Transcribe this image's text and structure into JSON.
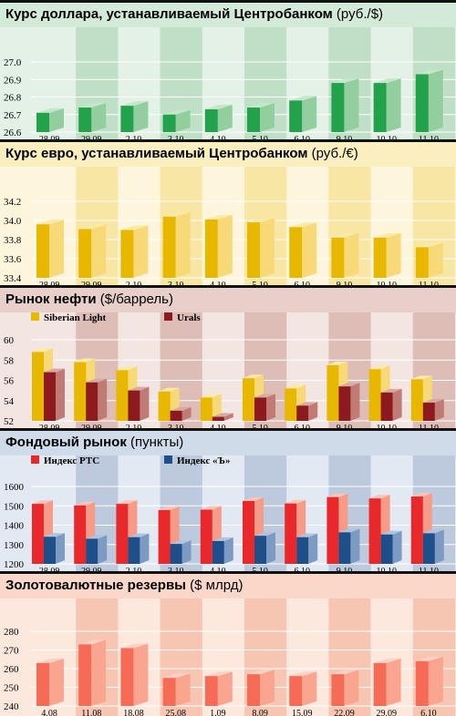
{
  "colors": {
    "usd_band": "#bfe0c6",
    "usd_bg": "#e3f1e6",
    "usd_title_bg": "#d2ead7",
    "usd_front": "#22a24a",
    "usd_side": "#93cf9e",
    "usd_top": "#c6e6cc",
    "eur_band": "#f8e6a4",
    "eur_bg": "#fdf6dc",
    "eur_title_bg": "#fbefc0",
    "eur_front": "#e8b800",
    "eur_side": "#f7d978",
    "eur_top": "#fbe9a8",
    "oil_band": "#ddbdb6",
    "oil_bg": "#f3e5e1",
    "oil_title_bg": "#e8cfc9",
    "sib_front": "#e8b800",
    "sib_side": "#f7d978",
    "sib_top": "#fbe9a8",
    "urals_front": "#8c1a1f",
    "urals_side": "#c07b74",
    "urals_top": "#d9aaa3",
    "stock_band": "#bdc9dd",
    "stock_bg": "#e3e9f2",
    "stock_title_bg": "#d0dbea",
    "rts_front": "#e8282b",
    "rts_side": "#f59b88",
    "rts_top": "#f9c5b8",
    "idx_front": "#1f4f88",
    "idx_side": "#7d9bc2",
    "idx_top": "#b0c4dc",
    "gold_band": "#f7c6b3",
    "gold_bg": "#fde8de",
    "gold_title_bg": "#fad7c8",
    "gold_front": "#f56b55",
    "gold_side": "#f9a58f",
    "gold_top": "#fcd0c2"
  },
  "panels": [
    {
      "id": "usd",
      "title_bold": "Курс доллара, устанавливаемый Центробанком",
      "title_normal": " (руб./$)"
    },
    {
      "id": "eur",
      "title_bold": "Курс евро, устанавливаемый Центробанком",
      "title_normal": " (руб./€)"
    },
    {
      "id": "oil",
      "title_bold": "Рынок нефти",
      "title_normal": " ($/баррель)"
    },
    {
      "id": "stock",
      "title_bold": "Фондовый рынок",
      "title_normal": " (пункты)"
    },
    {
      "id": "gold",
      "title_bold": "Золотовалютные резервы",
      "title_normal": " ($ млрд)"
    }
  ],
  "chart_data": [
    {
      "id": "usd",
      "type": "bar",
      "title": "Курс доллара, устанавливаемый Центробанком (руб./$)",
      "categories": [
        "28.09",
        "29.09",
        "2.10",
        "3.10",
        "4.10",
        "5.10",
        "6.10",
        "9.10",
        "10.10",
        "11.10"
      ],
      "series": [
        {
          "values": [
            26.71,
            26.74,
            26.75,
            26.7,
            26.73,
            26.74,
            26.78,
            26.88,
            26.88,
            26.93
          ]
        }
      ],
      "ylim": [
        26.6,
        27.0
      ],
      "yticks": [
        "26.6",
        "26.7",
        "26.8",
        "26.9",
        "27.0"
      ]
    },
    {
      "id": "eur",
      "type": "bar",
      "title": "Курс евро, устанавливаемый Центробанком (руб./€)",
      "categories": [
        "28.09",
        "29.09",
        "2.10",
        "3.10",
        "4.10",
        "5.10",
        "6.10",
        "9.10",
        "10.10",
        "11.10"
      ],
      "series": [
        {
          "values": [
            33.96,
            33.91,
            33.9,
            34.04,
            34.01,
            33.98,
            33.93,
            33.82,
            33.82,
            33.72
          ]
        }
      ],
      "ylim": [
        33.4,
        34.2
      ],
      "yticks": [
        "33.4",
        "33.6",
        "33.8",
        "34.0",
        "34.2"
      ]
    },
    {
      "id": "oil",
      "type": "bar",
      "title": "Рынок нефти ($/баррель)",
      "categories": [
        "28.09",
        "29.09",
        "2.10",
        "3.10",
        "4.10",
        "5.10",
        "6.10",
        "9.10",
        "10.10",
        "11.10"
      ],
      "series": [
        {
          "name": "Siberian Light",
          "values": [
            58.8,
            57.8,
            57.0,
            54.9,
            54.3,
            56.2,
            55.2,
            57.5,
            57.1,
            56.1
          ]
        },
        {
          "name": "Urals",
          "values": [
            56.8,
            55.8,
            55.0,
            53.0,
            52.4,
            54.3,
            53.5,
            55.4,
            54.8,
            53.8
          ]
        }
      ],
      "ylim": [
        52,
        60
      ],
      "yticks": [
        "52",
        "54",
        "56",
        "58",
        "60"
      ]
    },
    {
      "id": "stock",
      "type": "bar",
      "title": "Фондовый рынок (пункты)",
      "categories": [
        "28.09",
        "29.09",
        "2.10",
        "3.10",
        "4.10",
        "5.10",
        "6.10",
        "9.10",
        "10.10",
        "11.10"
      ],
      "series": [
        {
          "name": "Индекс РТС",
          "values": [
            1510,
            1502,
            1510,
            1478,
            1480,
            1525,
            1512,
            1545,
            1538,
            1548
          ]
        },
        {
          "name": "Индекс «Ъ»",
          "values": [
            1340,
            1330,
            1338,
            1303,
            1318,
            1345,
            1338,
            1363,
            1352,
            1358
          ]
        }
      ],
      "ylim": [
        1200,
        1600
      ],
      "yticks": [
        "1200",
        "1300",
        "1400",
        "1500",
        "1600"
      ]
    },
    {
      "id": "gold",
      "type": "bar",
      "title": "Золотовалютные резервы ($ млрд)",
      "categories": [
        "4.08",
        "11.08",
        "18.08",
        "25.08",
        "1.09",
        "8.09",
        "15.09",
        "22.09",
        "29.09",
        "6.10"
      ],
      "series": [
        {
          "values": [
            263,
            273,
            271,
            255,
            256,
            257,
            256,
            257,
            263,
            264
          ]
        }
      ],
      "ylim": [
        240,
        280
      ],
      "yticks": [
        "240",
        "250",
        "260",
        "270",
        "280"
      ]
    }
  ]
}
